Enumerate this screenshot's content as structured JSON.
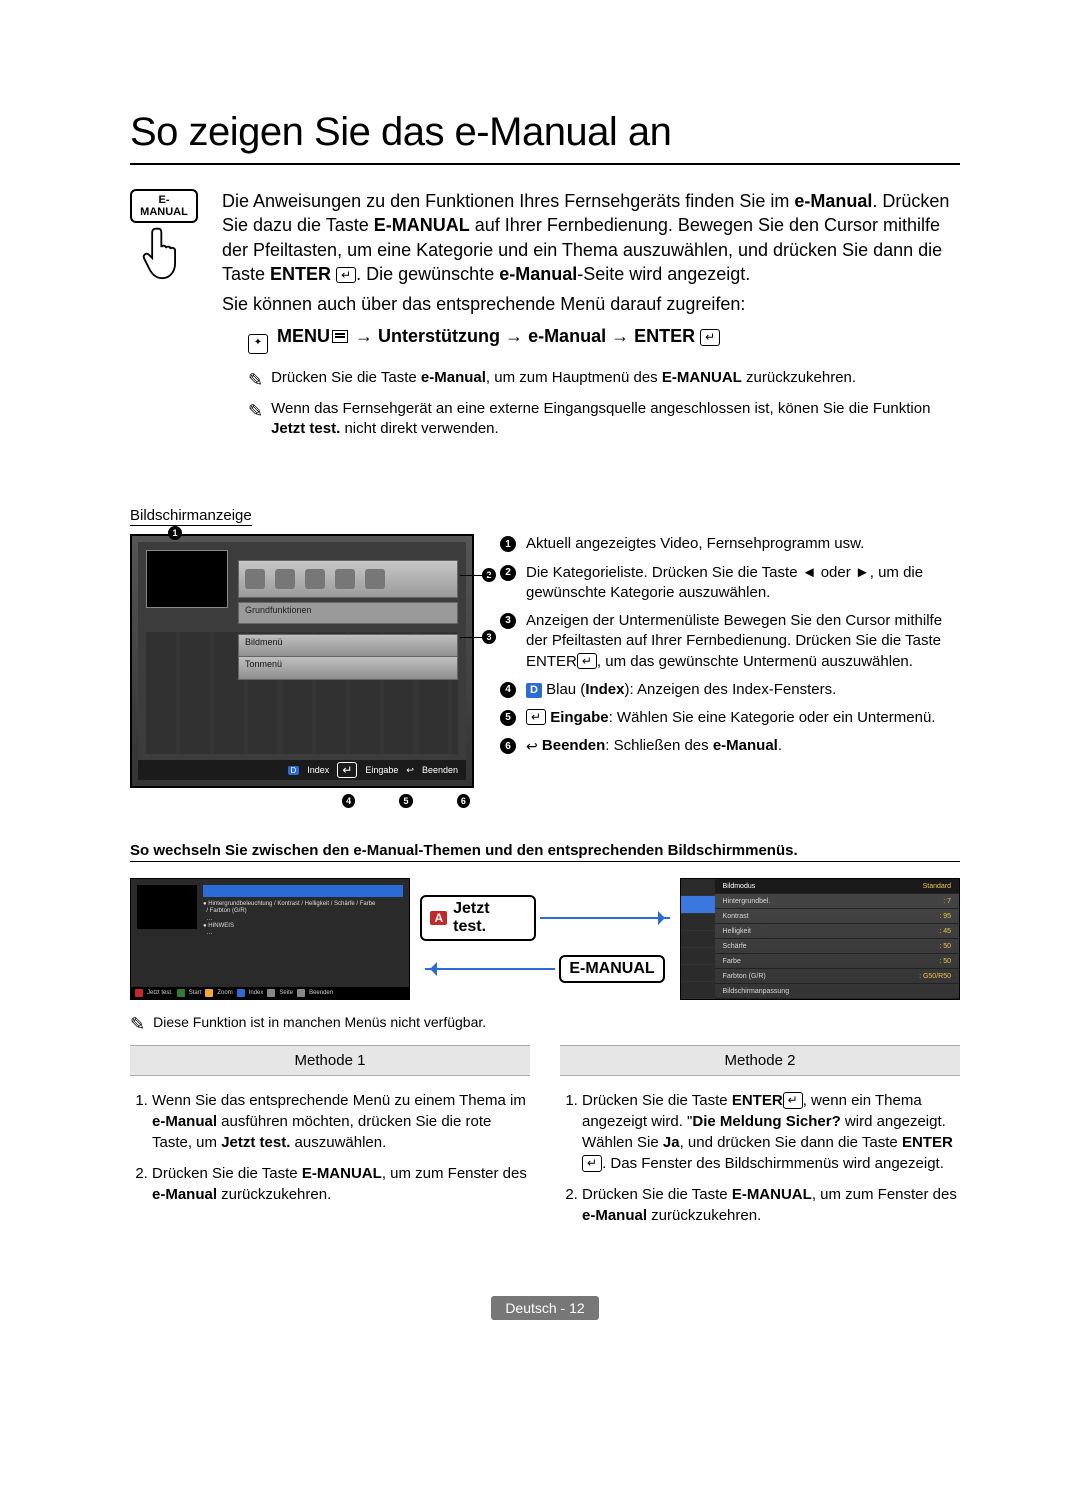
{
  "title": "So zeigen Sie das e-Manual an",
  "remote_btn": "E-MANUAL",
  "intro": {
    "p1_a": "Die Anweisungen zu den Funktionen Ihres Fernsehgeräts finden Sie im ",
    "p1_b": "e-Manual",
    "p1_c": ". Drücken Sie dazu die Taste ",
    "p1_d": "E-MANUAL",
    "p1_e": " auf Ihrer Fernbedienung. Bewegen Sie den Cursor mithilfe der Pfeiltasten, um eine Kategorie und ein Thema auszuwählen, und drücken Sie dann die Taste ",
    "p1_f": "ENTER",
    "p1_g": ". Die gewünschte ",
    "p1_h": "e-Manual",
    "p1_i": "-Seite wird angezeigt.",
    "p2": "Sie können auch über das entsprechende Menü darauf zugreifen:"
  },
  "menu_path": {
    "menu": "MENU",
    "arrow": " → ",
    "s1": "Unterstützung",
    "s2": "e-Manual",
    "enter": "ENTER"
  },
  "notes": {
    "n1_a": "Drücken Sie die Taste ",
    "n1_b": "e-Manual",
    "n1_c": ", um zum Hauptmenü des ",
    "n1_d": "E-MANUAL",
    "n1_e": " zurückzukehren.",
    "n2_a": "Wenn das Fernsehgerät an eine externe Eingangsquelle angeschlossen ist, könen Sie die Funktion ",
    "n2_b": "Jetzt test.",
    "n2_c": " nicht direkt verwenden."
  },
  "screen_label": "Bildschirmanzeige",
  "tv": {
    "cat_label": "Grundfunktionen",
    "sub1": "Bildmenü",
    "sub2": "Tonmenü",
    "footer_index": "Index",
    "footer_eingabe": "Eingabe",
    "footer_beenden": "Beenden"
  },
  "legend": {
    "l1": "Aktuell angezeigtes Video, Fernsehprogramm usw.",
    "l2": "Die Kategorieliste. Drücken Sie die Taste ◄ oder ►, um die gewünschte Kategorie auszuwählen.",
    "l3_a": "Anzeigen der Untermenüliste Bewegen Sie den Cursor mithilfe der Pfeiltasten auf Ihrer Fernbedienung. Drücken Sie die Taste ENTER",
    "l3_b": ", um das gewünschte Untermenü auszuwählen.",
    "l4_a": " Blau (",
    "l4_b": "Index",
    "l4_c": "): Anzeigen des Index-Fensters.",
    "l5_a": "Eingabe",
    "l5_b": ": Wählen Sie eine Kategorie oder ein Untermenü.",
    "l6_a": "Beenden",
    "l6_b": ": Schließen des ",
    "l6_c": "e-Manual",
    "l6_d": "."
  },
  "swap_title": "So wechseln Sie zwischen den e-Manual-Themen und den entsprechenden Bildschirmmenüs.",
  "badge_test": "Jetzt test.",
  "badge_emanual": "E-MANUAL",
  "mini_left": {
    "hdr": "Grundfunktionen > Bildmenü (3/17)",
    "ftr_items": [
      "Jetzt test.",
      "Start",
      "Zoom",
      "Index",
      "Seite",
      "Beenden"
    ],
    "ftr_colors": [
      "#c62828",
      "#2e7d32",
      "#f9a825",
      "#2a6bd6",
      "#888",
      "#888"
    ]
  },
  "mini_right": {
    "rows": [
      {
        "k": "Bildmodus",
        "v": "Standard",
        "hd": true
      },
      {
        "k": "Hintergrundbel.",
        "v": ": 7"
      },
      {
        "k": "Kontrast",
        "v": ": 95"
      },
      {
        "k": "Helligkeit",
        "v": ": 45"
      },
      {
        "k": "Schärfe",
        "v": ": 50"
      },
      {
        "k": "Farbe",
        "v": ": 50"
      },
      {
        "k": "Farbton (G/R)",
        "v": ": G50/R50"
      },
      {
        "k": "Bildschirmanpassung",
        "v": ""
      }
    ]
  },
  "small_note": "Diese Funktion ist in manchen Menüs nicht verfügbar.",
  "method1_hdr": "Methode 1",
  "method2_hdr": "Methode 2",
  "m1": {
    "i1_a": "Wenn Sie das entsprechende Menü zu einem Thema im ",
    "i1_b": "e-Manual",
    "i1_c": " ausführen möchten, drücken Sie die rote Taste, um ",
    "i1_d": "Jetzt test.",
    "i1_e": " auszuwählen.",
    "i2_a": "Drücken Sie die Taste ",
    "i2_b": "E-MANUAL",
    "i2_c": ", um zum Fenster des ",
    "i2_d": "e-Manual",
    "i2_e": " zurückzukehren."
  },
  "m2": {
    "i1_a": "Drücken Sie die Taste ",
    "i1_b": "ENTER",
    "i1_c": ", wenn ein Thema angezeigt wird. \"",
    "i1_d": "Die Meldung Sicher?",
    "i1_e": " wird angezeigt. Wählen Sie ",
    "i1_f": "Ja",
    "i1_g": ", und drücken Sie dann die Taste ",
    "i1_h": "ENTER",
    "i1_i": ". Das Fenster des Bildschirmmenüs wird angezeigt.",
    "i2_a": "Drücken Sie die Taste ",
    "i2_b": "E-MANUAL",
    "i2_c": ", um zum Fenster des ",
    "i2_d": "e-Manual",
    "i2_e": " zurückzukehren."
  },
  "footer_lang": "Deutsch - 12"
}
